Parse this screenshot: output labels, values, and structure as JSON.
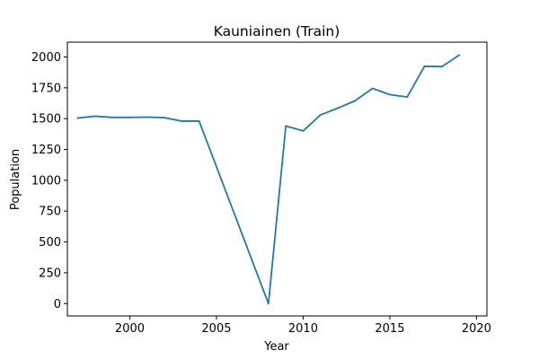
{
  "chart_data": {
    "type": "line",
    "title": "Kauniainen (Train)",
    "xlabel": "Year",
    "ylabel": "Population",
    "xlim": [
      1996.4,
      2020.6
    ],
    "ylim": [
      -100,
      2120
    ],
    "xticks": [
      2000,
      2005,
      2010,
      2015,
      2020
    ],
    "yticks": [
      0,
      250,
      500,
      750,
      1000,
      1250,
      1500,
      1750,
      2000
    ],
    "grid": false,
    "color": "#1f77b4",
    "x": [
      1997,
      1998,
      1999,
      2000,
      2001,
      2002,
      2003,
      2004,
      2008,
      2009,
      2010,
      2011,
      2012,
      2013,
      2014,
      2015,
      2016,
      2017,
      2018,
      2019
    ],
    "values": [
      1505,
      1520,
      1510,
      1510,
      1512,
      1508,
      1480,
      1480,
      0,
      1440,
      1400,
      1530,
      1585,
      1645,
      1745,
      1695,
      1675,
      1925,
      1922,
      2015
    ]
  }
}
